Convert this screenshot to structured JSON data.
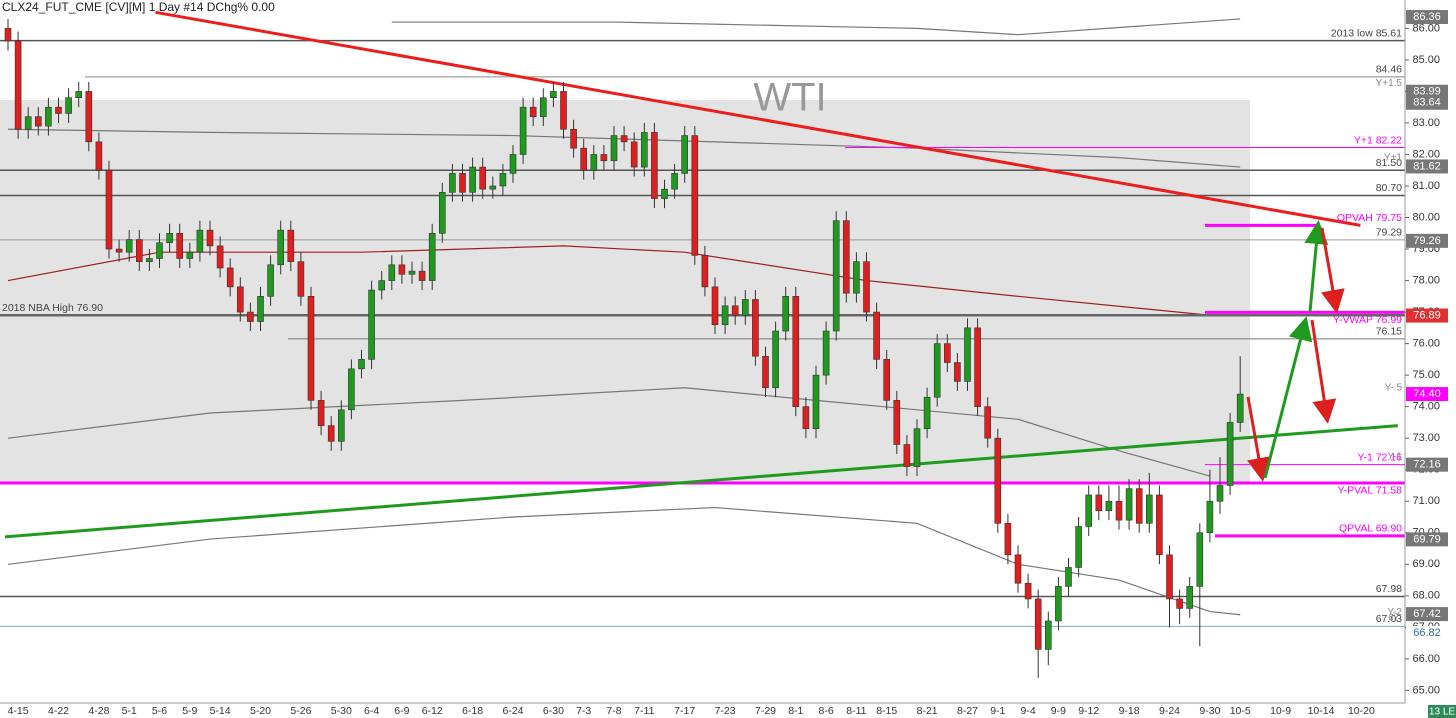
{
  "chart_data": {
    "type": "candlestick",
    "title": "CLX24_FUT_CME [CV][M]  1 Day #14 DChg% 0.00",
    "watermark": "WTI",
    "corner_label": "13 LE",
    "categories": [
      null,
      "4-15",
      null,
      null,
      null,
      "4-22",
      null,
      null,
      null,
      "4-28",
      null,
      null,
      "5-1",
      null,
      null,
      "5-6",
      null,
      null,
      "5-9",
      null,
      null,
      "5-14",
      null,
      null,
      null,
      "5-20",
      null,
      null,
      null,
      "5-26",
      null,
      null,
      null,
      "5-30",
      null,
      null,
      "6-4",
      null,
      null,
      "6-9",
      null,
      null,
      "6-12",
      null,
      null,
      null,
      "6-18",
      null,
      null,
      null,
      "6-24",
      null,
      null,
      null,
      "6-30",
      null,
      null,
      "7-3",
      null,
      null,
      "7-8",
      null,
      null,
      "7-11",
      null,
      null,
      null,
      "7-17",
      null,
      null,
      null,
      "7-23",
      null,
      null,
      null,
      "7-29",
      null,
      null,
      "8-1",
      null,
      null,
      "8-6",
      null,
      null,
      "8-11",
      null,
      null,
      "8-15",
      null,
      null,
      null,
      "8-21",
      null,
      null,
      null,
      "8-27",
      null,
      null,
      "9-1",
      null,
      null,
      "9-4",
      null,
      null,
      "9-9",
      null,
      null,
      "9-12",
      null,
      null,
      null,
      "9-18",
      null,
      null,
      null,
      "9-24",
      null,
      null,
      null,
      "9-30",
      null,
      null,
      "10-5",
      null,
      null,
      null,
      "10-9",
      null,
      null,
      null,
      "10-14",
      null,
      null,
      null,
      "10-20",
      null,
      null,
      null,
      null
    ],
    "open": [
      86.0,
      85.6,
      82.8,
      83.2,
      82.9,
      83.5,
      83.3,
      83.8,
      84.0,
      82.4,
      81.5,
      79.0,
      78.9,
      79.3,
      78.6,
      78.7,
      79.2,
      79.5,
      78.7,
      78.9,
      79.6,
      79.1,
      78.4,
      77.8,
      77.0,
      76.7,
      77.5,
      78.5,
      79.6,
      78.6,
      77.5,
      74.2,
      73.4,
      72.9,
      73.9,
      75.2,
      75.5,
      77.7,
      78.0,
      78.5,
      78.2,
      78.3,
      78.0,
      79.5,
      80.8,
      81.4,
      80.8,
      81.6,
      80.9,
      81.0,
      81.4,
      82.0,
      83.5,
      83.2,
      83.8,
      84.0,
      82.8,
      82.2,
      81.5,
      82.0,
      81.8,
      82.6,
      82.4,
      81.6,
      82.7,
      80.6,
      80.9,
      81.4,
      82.6,
      78.8,
      77.8,
      76.6,
      77.2,
      76.9,
      77.4,
      75.6,
      74.6,
      76.4,
      77.5,
      74.0,
      73.3,
      75.0,
      76.4,
      79.9,
      77.6,
      78.6,
      77.0,
      75.5,
      74.2,
      72.8,
      72.1,
      73.3,
      74.3,
      76.0,
      75.4,
      74.8,
      76.5,
      74.0,
      73.0,
      70.3,
      69.3,
      68.4,
      67.9,
      66.3,
      67.2,
      68.3,
      68.9,
      70.2,
      71.2,
      70.7,
      71.0,
      70.4,
      71.4,
      70.3,
      71.2,
      69.3,
      67.9,
      67.6,
      68.3,
      70.0,
      71.0,
      71.5,
      73.5,
      null,
      null,
      null,
      null,
      null,
      null,
      null,
      null,
      null,
      null,
      null,
      null,
      null,
      null,
      null,
      null
    ],
    "high": [
      86.3,
      85.9,
      83.5,
      83.5,
      83.8,
      83.8,
      84.1,
      84.3,
      84.3,
      82.7,
      81.8,
      79.3,
      79.6,
      79.6,
      79.0,
      79.5,
      79.8,
      79.8,
      79.2,
      79.9,
      79.9,
      79.4,
      78.7,
      78.1,
      77.3,
      77.8,
      78.8,
      79.9,
      79.9,
      78.9,
      77.8,
      74.5,
      73.7,
      74.2,
      75.5,
      75.8,
      78.0,
      78.3,
      78.8,
      78.8,
      78.6,
      78.6,
      79.8,
      81.1,
      81.7,
      81.7,
      81.9,
      81.9,
      81.3,
      81.7,
      82.3,
      83.8,
      83.8,
      84.1,
      84.3,
      84.3,
      83.1,
      82.5,
      82.3,
      82.3,
      82.9,
      82.9,
      82.7,
      83.0,
      83.0,
      81.2,
      81.7,
      82.9,
      82.9,
      79.1,
      78.1,
      77.5,
      77.5,
      77.7,
      77.7,
      75.9,
      76.7,
      77.8,
      77.8,
      74.3,
      75.3,
      76.7,
      80.2,
      80.2,
      78.9,
      78.9,
      77.3,
      75.8,
      74.5,
      73.1,
      73.6,
      74.6,
      76.3,
      76.3,
      75.7,
      76.8,
      76.8,
      74.3,
      73.3,
      70.6,
      69.6,
      68.7,
      68.2,
      67.5,
      68.6,
      69.2,
      70.5,
      71.5,
      71.5,
      71.5,
      71.5,
      71.7,
      71.7,
      71.9,
      71.5,
      69.6,
      68.2,
      68.6,
      70.3,
      72.0,
      72.4,
      73.8,
      75.6,
      null,
      null,
      null,
      null,
      null,
      null,
      null,
      null,
      null,
      null,
      null,
      null,
      null,
      null,
      null,
      null
    ],
    "low": [
      85.3,
      82.5,
      82.5,
      82.6,
      82.6,
      83.0,
      83.0,
      83.5,
      82.1,
      81.2,
      78.7,
      78.6,
      78.6,
      78.3,
      78.3,
      78.4,
      78.9,
      78.4,
      78.4,
      78.6,
      78.8,
      78.1,
      77.5,
      76.7,
      76.4,
      76.4,
      77.2,
      78.2,
      78.3,
      77.2,
      73.9,
      73.1,
      72.6,
      72.6,
      73.6,
      74.9,
      75.2,
      77.4,
      77.7,
      77.9,
      77.9,
      77.7,
      77.7,
      79.2,
      80.5,
      80.5,
      80.5,
      80.6,
      80.6,
      80.7,
      81.1,
      81.7,
      82.9,
      82.9,
      83.5,
      82.5,
      81.9,
      81.2,
      81.2,
      81.5,
      81.5,
      82.1,
      81.3,
      81.3,
      80.3,
      80.3,
      80.6,
      81.1,
      78.5,
      77.5,
      76.3,
      76.3,
      76.6,
      76.6,
      75.3,
      74.3,
      74.3,
      76.1,
      73.7,
      73.0,
      73.0,
      74.7,
      76.1,
      77.3,
      77.3,
      76.7,
      75.2,
      73.9,
      72.5,
      71.8,
      71.8,
      73.0,
      74.0,
      75.1,
      74.5,
      74.5,
      73.7,
      72.7,
      70.0,
      69.0,
      68.1,
      67.6,
      65.4,
      65.8,
      66.9,
      68.0,
      68.6,
      69.9,
      70.4,
      70.4,
      70.1,
      70.1,
      70.0,
      70.0,
      69.0,
      67.0,
      67.1,
      67.3,
      66.4,
      69.7,
      70.6,
      71.2,
      73.2,
      null,
      null,
      null,
      null,
      null,
      null,
      null,
      null,
      null,
      null,
      null,
      null,
      null,
      null,
      null,
      null
    ],
    "close": [
      85.6,
      82.8,
      83.2,
      82.9,
      83.5,
      83.3,
      83.8,
      84.0,
      82.4,
      81.5,
      79.0,
      78.9,
      79.3,
      78.6,
      78.7,
      79.2,
      79.5,
      78.7,
      78.9,
      79.6,
      79.1,
      78.4,
      77.8,
      77.0,
      76.7,
      77.5,
      78.5,
      79.6,
      78.6,
      77.5,
      74.2,
      73.4,
      72.9,
      73.9,
      75.2,
      75.5,
      77.7,
      78.0,
      78.5,
      78.2,
      78.3,
      78.0,
      79.5,
      80.8,
      81.4,
      80.8,
      81.6,
      80.9,
      81.0,
      81.4,
      82.0,
      83.5,
      83.2,
      83.8,
      84.0,
      82.8,
      82.2,
      81.5,
      82.0,
      81.8,
      82.6,
      82.4,
      81.6,
      82.7,
      80.6,
      80.9,
      81.4,
      82.6,
      78.8,
      77.8,
      76.6,
      77.2,
      76.9,
      77.4,
      75.6,
      74.6,
      76.4,
      77.5,
      74.0,
      73.3,
      75.0,
      76.4,
      79.9,
      77.6,
      78.6,
      77.0,
      75.5,
      74.2,
      72.8,
      72.1,
      73.3,
      74.3,
      76.0,
      75.4,
      74.8,
      76.5,
      74.0,
      73.0,
      70.3,
      69.3,
      68.4,
      67.9,
      66.3,
      67.2,
      68.3,
      68.9,
      70.2,
      71.2,
      70.7,
      71.0,
      70.4,
      71.4,
      70.3,
      71.2,
      69.3,
      67.9,
      67.6,
      68.3,
      70.0,
      71.0,
      71.5,
      73.5,
      74.4,
      null,
      null,
      null,
      null,
      null,
      null,
      null,
      null,
      null,
      null,
      null,
      null,
      null,
      null,
      null,
      null
    ],
    "up_color": "#1f9a1f",
    "down_color": "#dd1f1f",
    "ylim": [
      64.6,
      86.9
    ],
    "yticks": [
      {
        "value": 65,
        "label": "65.00"
      },
      {
        "value": 66,
        "label": "66.00"
      },
      {
        "value": 67,
        "label": "67.00"
      },
      {
        "value": 68,
        "label": "68.00"
      },
      {
        "value": 69,
        "label": "69.00"
      },
      {
        "value": 70,
        "label": "70.00"
      },
      {
        "value": 71,
        "label": "71.00"
      },
      {
        "value": 72,
        "label": "72.00"
      },
      {
        "value": 73,
        "label": "73.00"
      },
      {
        "value": 74,
        "label": "74.00"
      },
      {
        "value": 75,
        "label": "75.00"
      },
      {
        "value": 76,
        "label": "76.00"
      },
      {
        "value": 77,
        "label": "77.00"
      },
      {
        "value": 78,
        "label": "78.00"
      },
      {
        "value": 79,
        "label": "79.00"
      },
      {
        "value": 80,
        "label": "80.00"
      },
      {
        "value": 81,
        "label": "81.00"
      },
      {
        "value": 82,
        "label": "82.00"
      },
      {
        "value": 83,
        "label": "83.00"
      },
      {
        "value": 84,
        "label": "84.00"
      },
      {
        "value": 85,
        "label": "85.00"
      },
      {
        "value": 86,
        "label": "86.00"
      }
    ],
    "levels": [
      {
        "value": 85.61,
        "label": "2013 low 85.61",
        "color": "#555555"
      },
      {
        "value": 84.46,
        "label": "84.46",
        "color": "#888888"
      },
      {
        "value": 82.22,
        "label": "Y+1 82.22",
        "color": "#ff00ff"
      },
      {
        "value": 81.5,
        "label": "81.50",
        "color": "#555555"
      },
      {
        "value": 80.7,
        "label": "80.70",
        "color": "#555555"
      },
      {
        "value": 79.75,
        "label": "QPVAH 79.75",
        "color": "#ff00ff"
      },
      {
        "value": 79.29,
        "label": "79.29",
        "color": "#999999"
      },
      {
        "value": 76.9,
        "label": "2018 NBA High 76.90",
        "color": "#666666"
      },
      {
        "value": 76.99,
        "label": "Y-VWAP 76.99",
        "color": "#ff00ff"
      },
      {
        "value": 76.15,
        "label": "76.15",
        "color": "#777777"
      },
      {
        "value": 72.16,
        "label": "Y-1 72.16",
        "color": "#ff00ff"
      },
      {
        "value": 71.58,
        "label": "Y-PVAL 71.58",
        "color": "#ff00ff"
      },
      {
        "value": 69.9,
        "label": "QPVAL 69.90",
        "color": "#ff00ff"
      },
      {
        "value": 67.98,
        "label": "67.98",
        "color": "#555555"
      },
      {
        "value": 67.03,
        "label": "67.03",
        "color": "#7aaccc"
      }
    ],
    "annotations": [
      {
        "value": 84.25,
        "label": "Y+1.5"
      },
      {
        "value": 81.9,
        "label": "Y+1"
      },
      {
        "value": 74.6,
        "label": "Y-.5"
      },
      {
        "value": 72.4,
        "label": "Y-1"
      },
      {
        "value": 67.47,
        "label": "Y-2"
      },
      {
        "value": 67.3,
        "label": "67."
      }
    ],
    "price_markers": [
      {
        "value": 86.36,
        "color": "#777777"
      },
      {
        "value": 83.99,
        "color": "#777777"
      },
      {
        "value": 83.64,
        "color": "#777777"
      },
      {
        "value": 81.62,
        "color": "#777777"
      },
      {
        "value": 79.26,
        "color": "#777777"
      },
      {
        "value": 76.89,
        "color": "#e03030"
      },
      {
        "value": 74.4,
        "label": "74.40",
        "color": "#ff00ff"
      },
      {
        "value": 72.16,
        "color": "#777777"
      },
      {
        "value": 69.79,
        "color": "#777777"
      },
      {
        "value": 67.42,
        "color": "#777777"
      },
      {
        "value": 66.82,
        "color": "#ffffff"
      }
    ],
    "trendlines": [
      {
        "color": "#ee1c1c",
        "x": [
          14.6,
          133.9
        ],
        "values": [
          86.51,
          79.75
        ]
      },
      {
        "color": "#1f9a1f",
        "x": [
          -0.3,
          137.6
        ],
        "values": [
          69.87,
          73.4
        ]
      }
    ],
    "overlays": [
      {
        "color": "#9e1f1f",
        "x": [
          0,
          15,
          35,
          55,
          67,
          85,
          100,
          119
        ],
        "values": [
          78.0,
          78.9,
          78.9,
          79.1,
          78.9,
          78.0,
          77.5,
          76.9
        ]
      },
      {
        "color": "#777777",
        "x": [
          0,
          20,
          50,
          70,
          90,
          110,
          122
        ],
        "values": [
          82.8,
          82.7,
          82.6,
          82.4,
          82.2,
          81.9,
          81.6
        ]
      },
      {
        "color": "#777777",
        "x": [
          0,
          20,
          45,
          67,
          80,
          100,
          110,
          119
        ],
        "values": [
          73.0,
          73.8,
          74.2,
          74.6,
          74.2,
          73.6,
          72.6,
          71.8
        ]
      },
      {
        "color": "#777777",
        "x": [
          0,
          20,
          50,
          70,
          90,
          100,
          110,
          119,
          122
        ],
        "values": [
          69.0,
          69.8,
          70.5,
          70.8,
          70.3,
          69.0,
          68.5,
          67.5,
          67.4
        ]
      },
      {
        "color": "#777777",
        "x": [
          38,
          60,
          90,
          100,
          122
        ],
        "values": [
          86.2,
          86.2,
          86.0,
          85.8,
          86.3
        ]
      }
    ]
  }
}
